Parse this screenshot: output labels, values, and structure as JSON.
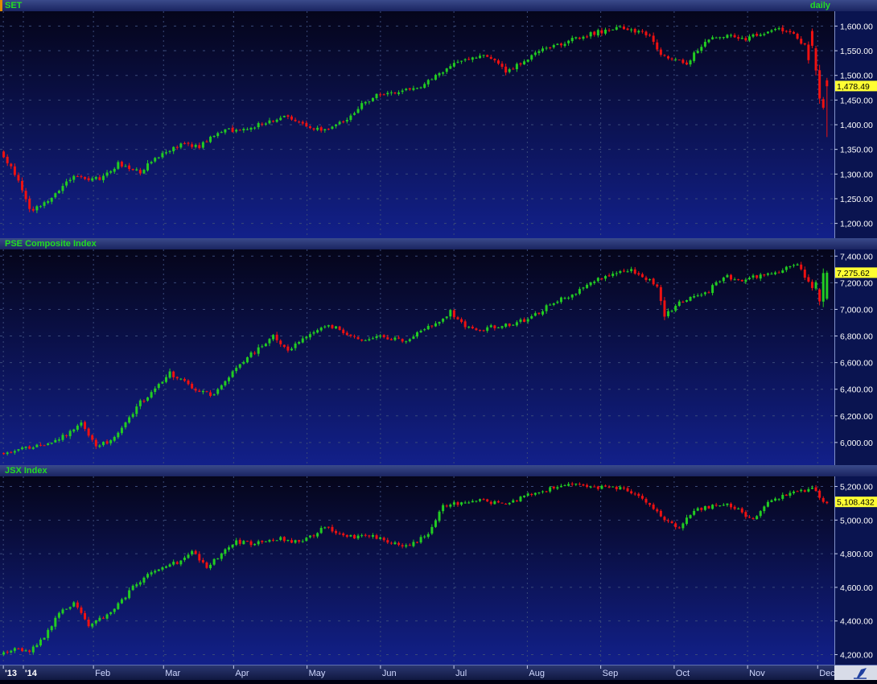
{
  "chart_data": [
    {
      "type": "candlestick",
      "title": "SET",
      "period": "daily",
      "ylim": [
        1170,
        1630
      ],
      "yticks": [
        1200,
        1250,
        1300,
        1350,
        1400,
        1450,
        1500,
        1550,
        1600
      ],
      "ytick_labels": [
        "1,200.00",
        "1,250.00",
        "1,300.00",
        "1,350.00",
        "1,400.00",
        "1,450.00",
        "1,500.00",
        "1,550.00",
        "1,600.00"
      ],
      "last_value": 1478.49,
      "last_label": "1,478.49",
      "colors": {
        "up": "#22cc22",
        "down": "#ee1111"
      },
      "anchors": [
        [
          0,
          1345
        ],
        [
          5,
          1290
        ],
        [
          8,
          1225
        ],
        [
          12,
          1240
        ],
        [
          16,
          1270
        ],
        [
          20,
          1300
        ],
        [
          24,
          1285
        ],
        [
          28,
          1295
        ],
        [
          32,
          1320
        ],
        [
          35,
          1310
        ],
        [
          38,
          1305
        ],
        [
          42,
          1330
        ],
        [
          46,
          1350
        ],
        [
          50,
          1360
        ],
        [
          54,
          1355
        ],
        [
          58,
          1380
        ],
        [
          62,
          1390
        ],
        [
          66,
          1390
        ],
        [
          70,
          1400
        ],
        [
          74,
          1410
        ],
        [
          78,
          1420
        ],
        [
          82,
          1400
        ],
        [
          86,
          1390
        ],
        [
          90,
          1395
        ],
        [
          94,
          1410
        ],
        [
          98,
          1440
        ],
        [
          102,
          1460
        ],
        [
          106,
          1465
        ],
        [
          110,
          1470
        ],
        [
          114,
          1480
        ],
        [
          118,
          1500
        ],
        [
          122,
          1520
        ],
        [
          126,
          1535
        ],
        [
          130,
          1540
        ],
        [
          134,
          1530
        ],
        [
          137,
          1510
        ],
        [
          140,
          1520
        ],
        [
          144,
          1540
        ],
        [
          148,
          1555
        ],
        [
          152,
          1565
        ],
        [
          156,
          1575
        ],
        [
          160,
          1585
        ],
        [
          164,
          1590
        ],
        [
          168,
          1595
        ],
        [
          172,
          1590
        ],
        [
          176,
          1580
        ],
        [
          178,
          1550
        ],
        [
          182,
          1530
        ],
        [
          186,
          1525
        ],
        [
          190,
          1560
        ],
        [
          194,
          1580
        ],
        [
          198,
          1580
        ],
        [
          202,
          1575
        ],
        [
          206,
          1585
        ],
        [
          210,
          1595
        ],
        [
          214,
          1590
        ],
        [
          218,
          1560
        ],
        [
          220,
          1500
        ],
        [
          223,
          1430
        ]
      ],
      "candles": [
        {
          "i": 219,
          "o": 1590,
          "h": 1595,
          "l": 1555,
          "c": 1560
        },
        {
          "i": 220,
          "o": 1555,
          "h": 1560,
          "l": 1500,
          "c": 1510
        },
        {
          "i": 223,
          "o": 1490,
          "h": 1495,
          "l": 1375,
          "c": 1478
        }
      ]
    },
    {
      "type": "candlestick",
      "title": "PSE Composite Index",
      "ylim": [
        5830,
        7450
      ],
      "yticks": [
        6000,
        6200,
        6400,
        6600,
        6800,
        7000,
        7200,
        7400
      ],
      "ytick_labels": [
        "6,000.00",
        "6,200.00",
        "6,400.00",
        "6,600.00",
        "6,800.00",
        "7,000.00",
        "7,200.00",
        "7,400.00"
      ],
      "last_value": 7275.62,
      "last_label": "7,275.62",
      "colors": {
        "up": "#22cc22",
        "down": "#ee1111"
      },
      "anchors": [
        [
          0,
          5920
        ],
        [
          5,
          5950
        ],
        [
          10,
          5970
        ],
        [
          14,
          6000
        ],
        [
          18,
          6060
        ],
        [
          22,
          6140
        ],
        [
          26,
          5960
        ],
        [
          30,
          6020
        ],
        [
          34,
          6150
        ],
        [
          38,
          6300
        ],
        [
          42,
          6400
        ],
        [
          46,
          6520
        ],
        [
          50,
          6450
        ],
        [
          54,
          6380
        ],
        [
          58,
          6350
        ],
        [
          62,
          6500
        ],
        [
          66,
          6620
        ],
        [
          70,
          6700
        ],
        [
          74,
          6800
        ],
        [
          78,
          6700
        ],
        [
          82,
          6780
        ],
        [
          86,
          6850
        ],
        [
          90,
          6870
        ],
        [
          94,
          6820
        ],
        [
          98,
          6760
        ],
        [
          102,
          6800
        ],
        [
          106,
          6780
        ],
        [
          110,
          6750
        ],
        [
          114,
          6850
        ],
        [
          118,
          6900
        ],
        [
          122,
          6980
        ],
        [
          126,
          6880
        ],
        [
          130,
          6850
        ],
        [
          134,
          6870
        ],
        [
          138,
          6880
        ],
        [
          142,
          6920
        ],
        [
          146,
          6980
        ],
        [
          150,
          7060
        ],
        [
          154,
          7100
        ],
        [
          158,
          7150
        ],
        [
          162,
          7230
        ],
        [
          166,
          7280
        ],
        [
          170,
          7300
        ],
        [
          174,
          7250
        ],
        [
          178,
          7180
        ],
        [
          180,
          6950
        ],
        [
          184,
          7050
        ],
        [
          188,
          7100
        ],
        [
          192,
          7140
        ],
        [
          196,
          7250
        ],
        [
          200,
          7220
        ],
        [
          204,
          7240
        ],
        [
          208,
          7260
        ],
        [
          212,
          7300
        ],
        [
          216,
          7340
        ],
        [
          220,
          7150
        ],
        [
          223,
          7275
        ]
      ],
      "candles": [
        {
          "i": 221,
          "o": 7150,
          "h": 7160,
          "l": 7030,
          "c": 7060
        },
        {
          "i": 223,
          "o": 7080,
          "h": 7290,
          "l": 7070,
          "c": 7275
        }
      ]
    },
    {
      "type": "candlestick",
      "title": "JSX Index",
      "ylim": [
        4140,
        5260
      ],
      "yticks": [
        4200,
        4400,
        4600,
        4800,
        5000,
        5200
      ],
      "ytick_labels": [
        "4,200.00",
        "4,400.00",
        "4,600.00",
        "4,800.00",
        "5,000.00",
        "5,200.00"
      ],
      "last_value": 5108.432,
      "last_label": "5,108.432",
      "colors": {
        "up": "#22cc22",
        "down": "#ee1111"
      },
      "anchors": [
        [
          0,
          4200
        ],
        [
          4,
          4240
        ],
        [
          8,
          4220
        ],
        [
          12,
          4300
        ],
        [
          16,
          4450
        ],
        [
          20,
          4500
        ],
        [
          24,
          4380
        ],
        [
          28,
          4420
        ],
        [
          32,
          4500
        ],
        [
          36,
          4600
        ],
        [
          40,
          4680
        ],
        [
          44,
          4720
        ],
        [
          48,
          4750
        ],
        [
          52,
          4820
        ],
        [
          56,
          4720
        ],
        [
          60,
          4800
        ],
        [
          64,
          4870
        ],
        [
          68,
          4860
        ],
        [
          72,
          4880
        ],
        [
          76,
          4890
        ],
        [
          80,
          4870
        ],
        [
          84,
          4900
        ],
        [
          88,
          4960
        ],
        [
          92,
          4920
        ],
        [
          96,
          4900
        ],
        [
          100,
          4910
        ],
        [
          104,
          4880
        ],
        [
          108,
          4850
        ],
        [
          112,
          4860
        ],
        [
          116,
          4920
        ],
        [
          120,
          5080
        ],
        [
          124,
          5100
        ],
        [
          128,
          5120
        ],
        [
          132,
          5110
        ],
        [
          136,
          5100
        ],
        [
          140,
          5120
        ],
        [
          144,
          5160
        ],
        [
          148,
          5180
        ],
        [
          152,
          5200
        ],
        [
          156,
          5210
        ],
        [
          160,
          5190
        ],
        [
          164,
          5200
        ],
        [
          168,
          5190
        ],
        [
          172,
          5160
        ],
        [
          176,
          5090
        ],
        [
          180,
          5000
        ],
        [
          184,
          4950
        ],
        [
          188,
          5060
        ],
        [
          192,
          5080
        ],
        [
          196,
          5100
        ],
        [
          200,
          5060
        ],
        [
          204,
          5000
        ],
        [
          208,
          5100
        ],
        [
          212,
          5140
        ],
        [
          216,
          5170
        ],
        [
          220,
          5190
        ],
        [
          223,
          5108
        ]
      ],
      "candles": []
    }
  ],
  "x_axis": {
    "labels": [
      "'13",
      "'14",
      "Feb",
      "Mar",
      "Apr",
      "May",
      "Jun",
      "Jul",
      "Aug",
      "Sep",
      "Oct",
      "Nov",
      "Dec"
    ],
    "positions": [
      1,
      7,
      28,
      49,
      70,
      92,
      114,
      136,
      158,
      180,
      202,
      224,
      245
    ]
  }
}
